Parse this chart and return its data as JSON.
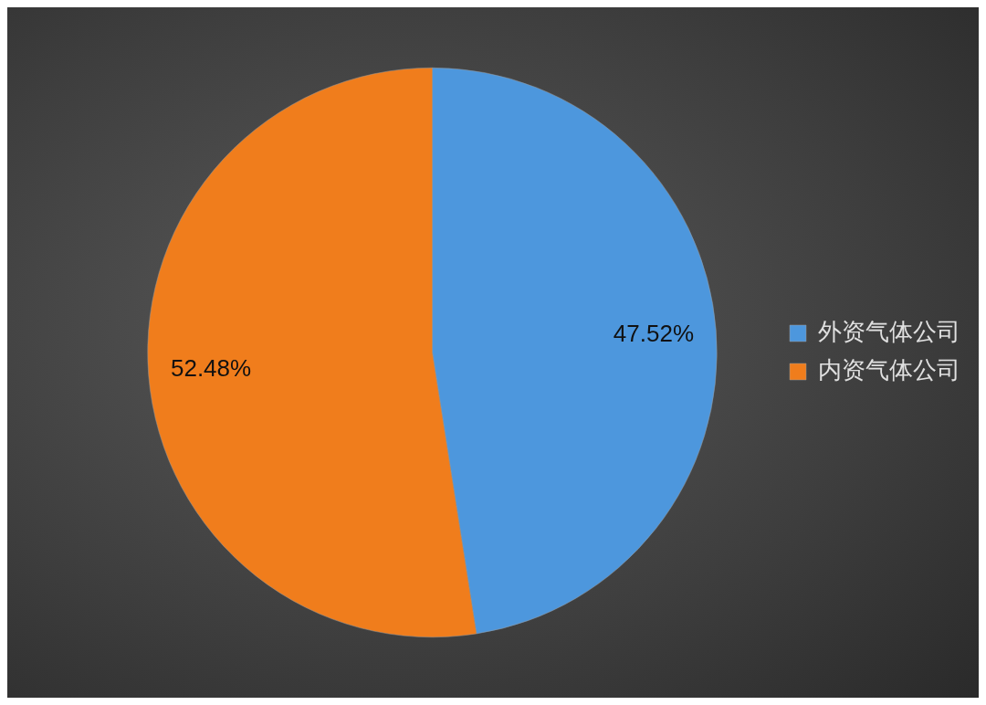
{
  "chart_data": {
    "type": "pie",
    "categories": [
      "外资气体公司",
      "内资气体公司"
    ],
    "values": [
      47.52,
      52.48
    ],
    "colors": [
      "#4d97dd",
      "#f07d1c"
    ],
    "value_labels": [
      "47.52%",
      "52.48%"
    ],
    "legend": "right"
  }
}
